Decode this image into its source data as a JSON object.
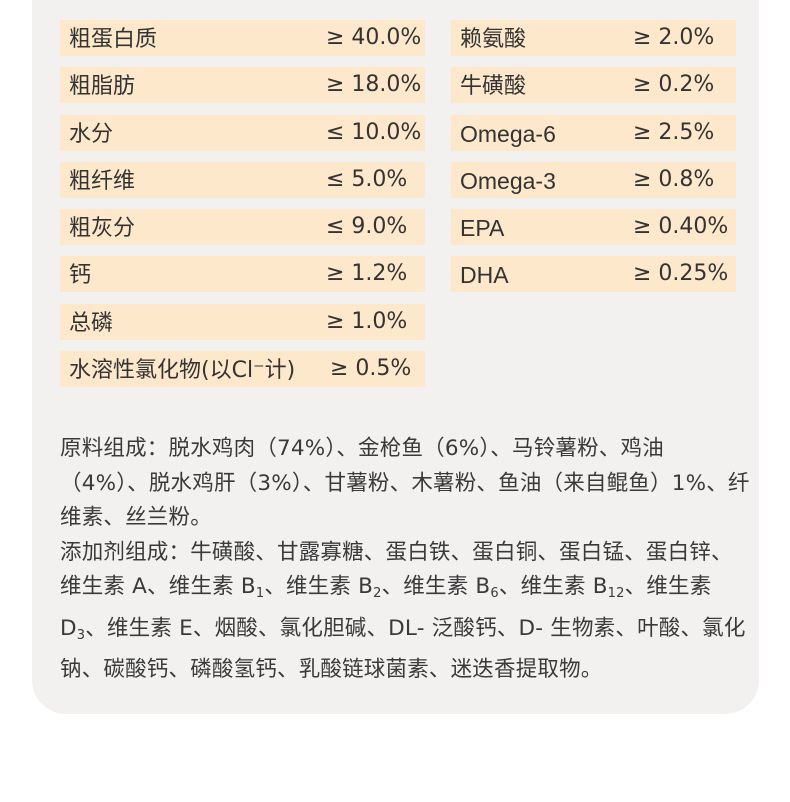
{
  "nutrients_left": [
    {
      "name": "粗蛋白质",
      "value": "≥ 40.0%"
    },
    {
      "name": "粗脂肪",
      "value": "≥ 18.0%"
    },
    {
      "name": "水分",
      "value": "≤ 10.0%"
    },
    {
      "name": "粗纤维",
      "value": "≤ 5.0%"
    },
    {
      "name": "粗灰分",
      "value": "≤ 9.0%"
    },
    {
      "name": "钙",
      "value": "≥ 1.2%"
    },
    {
      "name": "总磷",
      "value": "≥ 1.0%"
    },
    {
      "name": "水溶性氯化物(以Cl⁻计)",
      "value": "≥ 0.5%"
    }
  ],
  "nutrients_right": [
    {
      "name": "赖氨酸",
      "value": "≥ 2.0%"
    },
    {
      "name": "牛磺酸",
      "value": "≥ 0.2%"
    },
    {
      "name": "Omega-6",
      "value": "≥ 2.5%"
    },
    {
      "name": "Omega-3",
      "value": "≥ 0.8%"
    },
    {
      "name": "EPA",
      "value": "≥ 0.40%"
    },
    {
      "name": "DHA",
      "value": "≥ 0.25%"
    }
  ],
  "ingredients": {
    "raw_prefix": "原料组成：",
    "raw_text": "脱水鸡肉（74%）、金枪鱼（6%）、马铃薯粉、鸡油（4%）、脱水鸡肝（3%）、甘薯粉、木薯粉、鱼油（来自鲲鱼）1%、纤维素、丝兰粉。",
    "additive_prefix": "添加剂组成：",
    "additive_a": "牛磺酸、甘露寡糖、蛋白铁、蛋白铜、蛋白锰、蛋白锌、维生素 A、维生素 B",
    "sub_1": "1",
    "additive_b": "、维生素 B",
    "sub_2": "2",
    "additive_c": "、维生素 B",
    "sub_6": "6",
    "additive_d": "、维生素 B",
    "sub_12": "12",
    "additive_e": "、维生素 D",
    "sub_3": "3",
    "additive_f": "、维生素 E、烟酸、氯化胆碱、DL- 泛酸钙、D- 生物素、叶酸、氯化钠、碳酸钙、磷酸氢钙、乳酸链球菌素、迷迭香提取物。"
  }
}
